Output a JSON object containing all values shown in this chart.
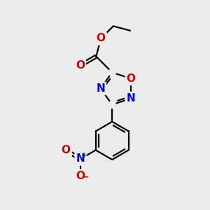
{
  "bg_color": "#ebebeb",
  "atom_colors": {
    "C": "#000000",
    "N": "#0000cc",
    "O": "#cc0000"
  },
  "bond_color": "#000000",
  "bond_width": 1.6,
  "font_size": 11
}
